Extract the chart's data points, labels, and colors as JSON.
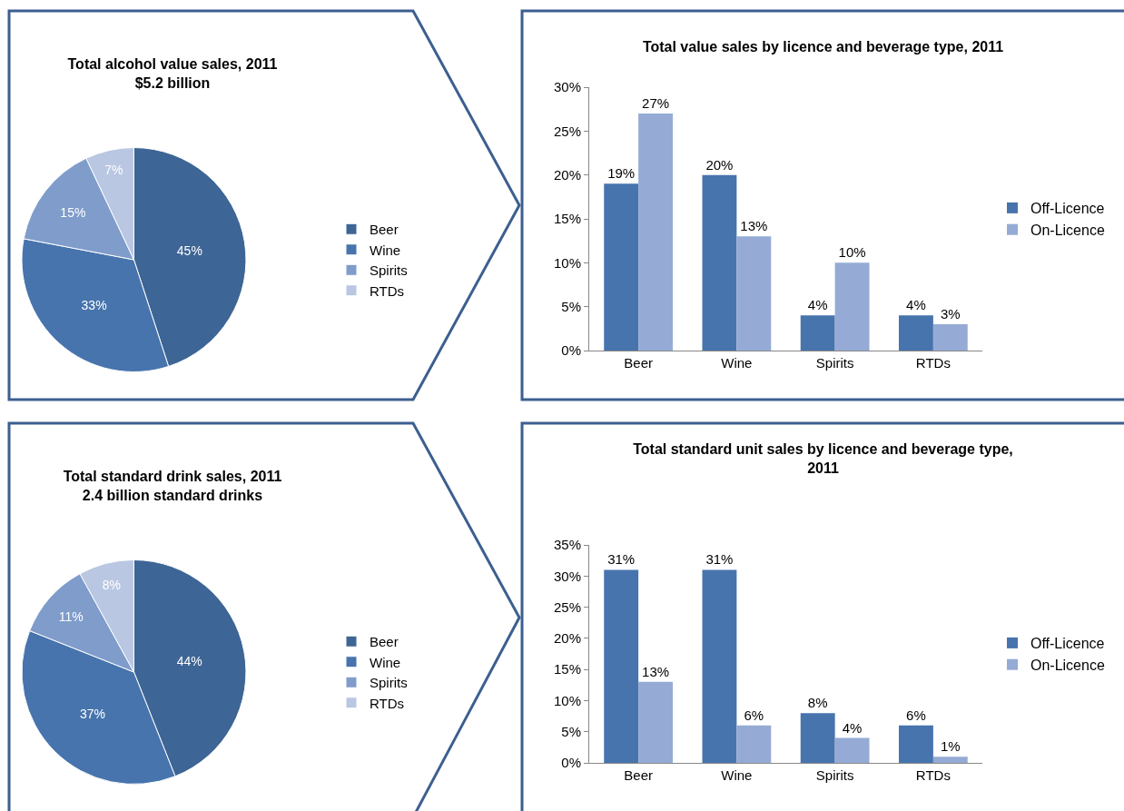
{
  "chart_data": [
    {
      "type": "pie",
      "title": "Total alcohol value sales, 2011",
      "subtitle": "$5.2 billion",
      "categories": [
        "Beer",
        "Wine",
        "Spirits",
        "RTDs"
      ],
      "values": [
        45,
        33,
        15,
        7
      ],
      "value_labels": [
        "45%",
        "33%",
        "15%",
        "7%"
      ],
      "colors": [
        "#3d6595",
        "#4774ad",
        "#7f9ccb",
        "#b9c7e2"
      ],
      "legend": "right"
    },
    {
      "type": "bar",
      "title": "Total value sales by licence and beverage type, 2011",
      "categories": [
        "Beer",
        "Wine",
        "Spirits",
        "RTDs"
      ],
      "series": [
        {
          "name": "Off-Licence",
          "color": "#4774ad",
          "values": [
            19,
            20,
            4,
            4
          ],
          "value_labels": [
            "19%",
            "20%",
            "4%",
            "4%"
          ]
        },
        {
          "name": "On-Licence",
          "color": "#95abd5",
          "values": [
            27,
            13,
            10,
            3
          ],
          "value_labels": [
            "27%",
            "13%",
            "10%",
            "3%"
          ]
        }
      ],
      "ylim": [
        0,
        30
      ],
      "yticks": [
        {
          "value": 0,
          "label": "0%"
        },
        {
          "value": 5,
          "label": "5%"
        },
        {
          "value": 10,
          "label": "10%"
        },
        {
          "value": 15,
          "label": "15%"
        },
        {
          "value": 20,
          "label": "20%"
        },
        {
          "value": 25,
          "label": "25%"
        },
        {
          "value": 30,
          "label": "30%"
        }
      ],
      "grid": false,
      "legend": "right"
    },
    {
      "type": "pie",
      "title": "Total standard drink sales, 2011",
      "subtitle": "2.4 billion standard drinks",
      "categories": [
        "Beer",
        "Wine",
        "Spirits",
        "RTDs"
      ],
      "values": [
        44,
        37,
        11,
        8
      ],
      "value_labels": [
        "44%",
        "37%",
        "11%",
        "8%"
      ],
      "colors": [
        "#3d6595",
        "#4774ad",
        "#7f9ccb",
        "#b9c7e2"
      ],
      "legend": "right"
    },
    {
      "type": "bar",
      "title": "Total standard unit sales by licence and beverage type, 2011",
      "categories": [
        "Beer",
        "Wine",
        "Spirits",
        "RTDs"
      ],
      "series": [
        {
          "name": "Off-Licence",
          "color": "#4774ad",
          "values": [
            31,
            31,
            8,
            6
          ],
          "value_labels": [
            "31%",
            "31%",
            "8%",
            "6%"
          ]
        },
        {
          "name": "On-Licence",
          "color": "#95abd5",
          "values": [
            13,
            6,
            4,
            1
          ],
          "value_labels": [
            "13%",
            "6%",
            "4%",
            "1%"
          ]
        }
      ],
      "ylim": [
        0,
        35
      ],
      "yticks": [
        {
          "value": 0,
          "label": "0%"
        },
        {
          "value": 5,
          "label": "5%"
        },
        {
          "value": 10,
          "label": "10%"
        },
        {
          "value": 15,
          "label": "15%"
        },
        {
          "value": 20,
          "label": "20%"
        },
        {
          "value": 25,
          "label": "25%"
        },
        {
          "value": 30,
          "label": "30%"
        },
        {
          "value": 35,
          "label": "35%"
        }
      ],
      "grid": false,
      "legend": "right"
    }
  ]
}
